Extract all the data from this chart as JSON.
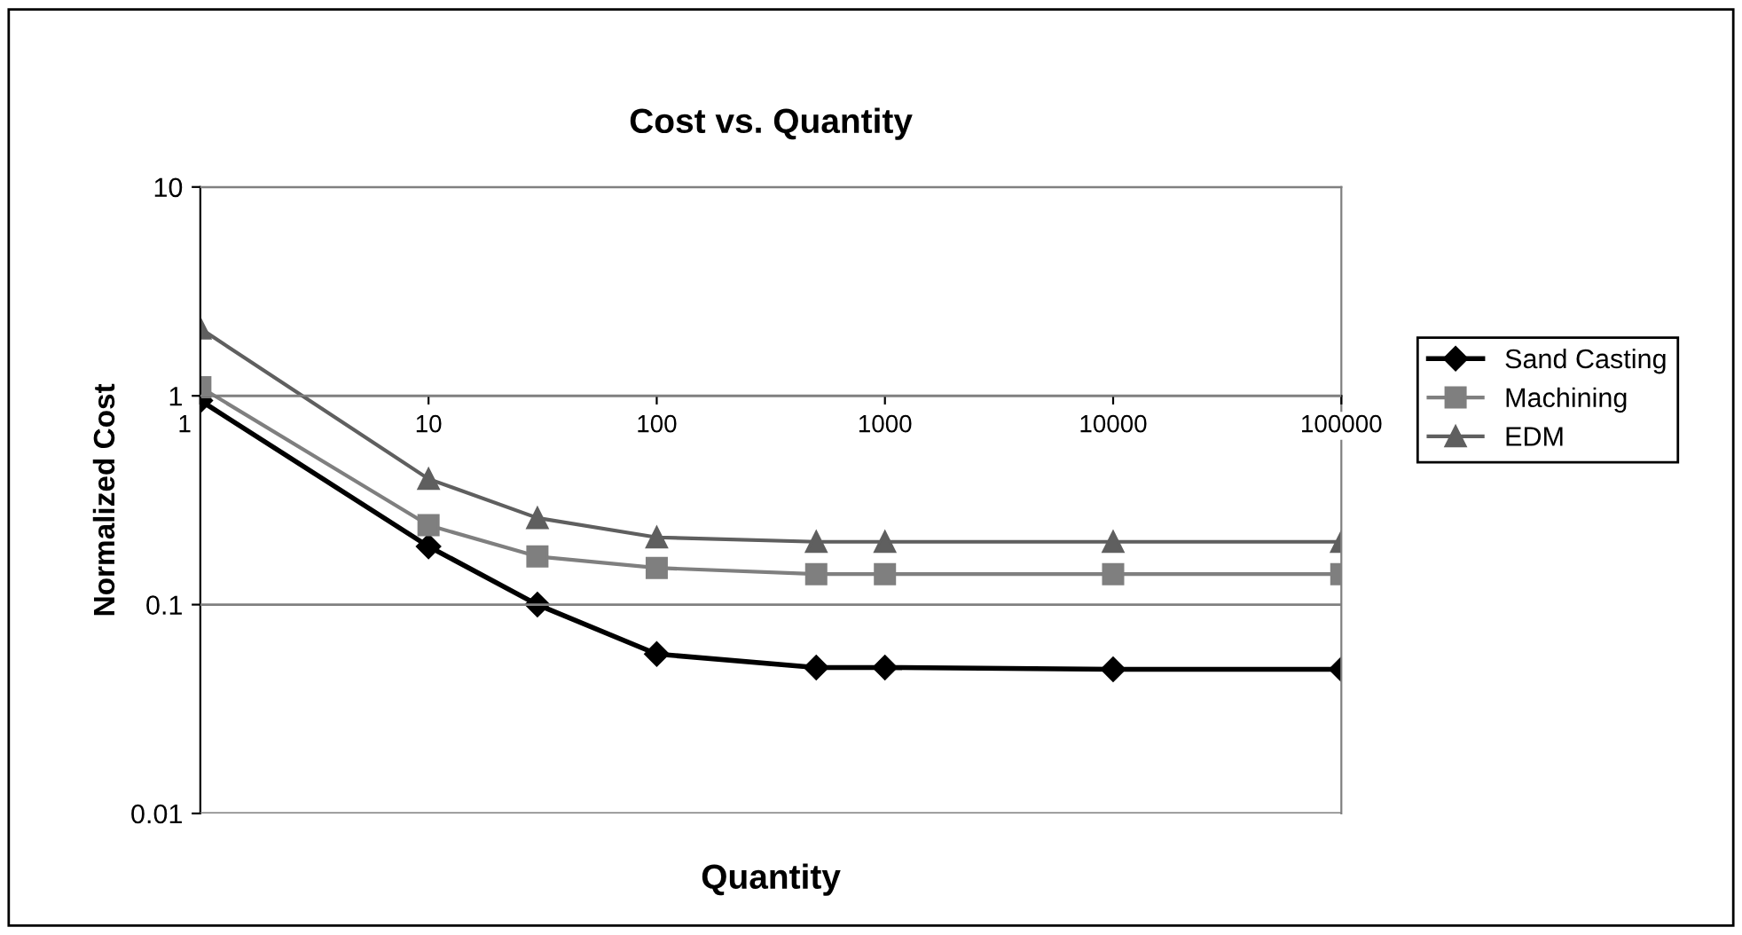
{
  "chart_data": {
    "type": "line",
    "title": "Cost vs. Quantity",
    "xlabel": "Quantity",
    "ylabel": "Normalized Cost",
    "x": [
      1,
      10,
      30,
      100,
      500,
      1000,
      10000,
      100000
    ],
    "series": [
      {
        "name": "Sand Casting",
        "color": "#000000",
        "marker": "diamond",
        "values": [
          0.95,
          0.19,
          0.1,
          0.058,
          0.05,
          0.05,
          0.049,
          0.049
        ]
      },
      {
        "name": "Machining",
        "color": "#7f7f7f",
        "marker": "square",
        "values": [
          1.1,
          0.24,
          0.17,
          0.15,
          0.14,
          0.14,
          0.14,
          0.14
        ]
      },
      {
        "name": "EDM",
        "color": "#5f5f5f",
        "marker": "triangle",
        "values": [
          2.1,
          0.4,
          0.26,
          0.21,
          0.2,
          0.2,
          0.2,
          0.2
        ]
      }
    ],
    "log": "xy",
    "xlim": [
      1,
      100000
    ],
    "xticks": [
      1,
      10,
      100,
      1000,
      10000,
      100000
    ],
    "ylim": [
      0.01,
      10
    ],
    "yticks": [
      0.01,
      0.1,
      1,
      10
    ],
    "grid": "y",
    "legend": "right"
  }
}
